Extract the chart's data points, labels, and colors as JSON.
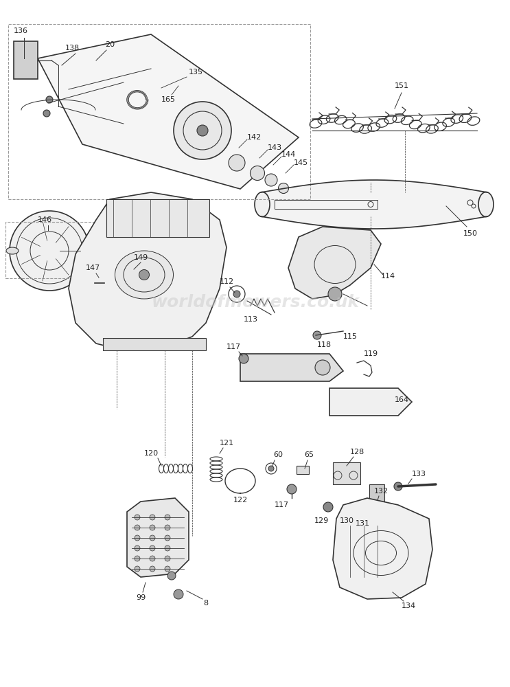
{
  "bg_color": "#ffffff",
  "line_color": "#333333",
  "label_color": "#222222",
  "watermark": "worldofmowers.co.uk",
  "watermark_color": "#cccccc",
  "watermark_alpha": 0.5,
  "figsize": [
    7.43,
    10.0
  ],
  "dpi": 100
}
